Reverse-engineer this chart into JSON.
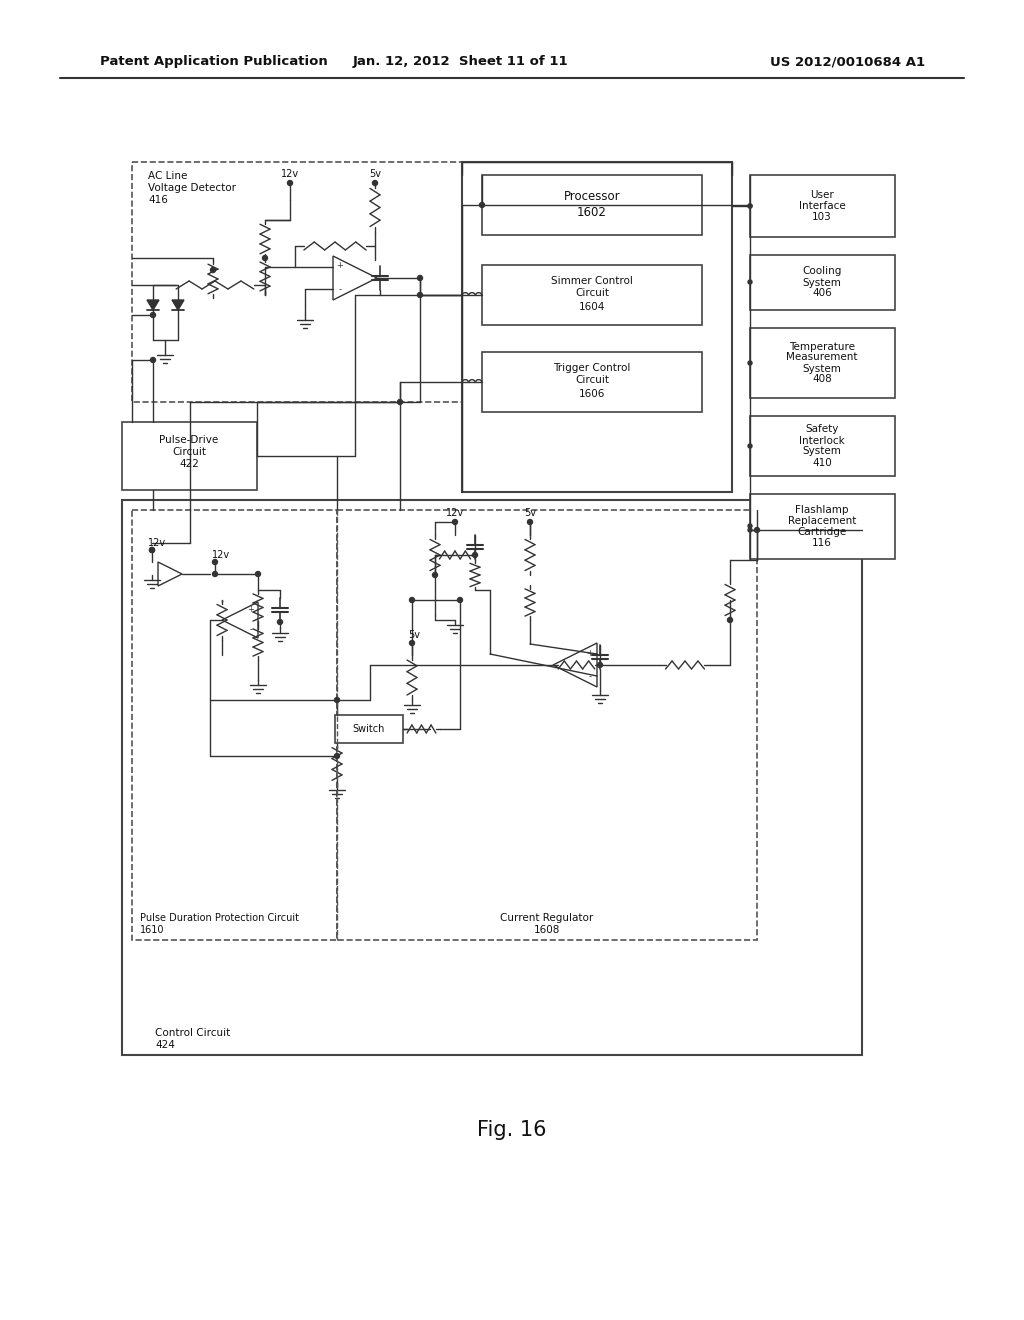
{
  "bg_color": "#ffffff",
  "line_color": "#333333",
  "dashed_color": "#555555",
  "text_color": "#111111",
  "header_left": "Patent Application Publication",
  "header_center": "Jan. 12, 2012  Sheet 11 of 11",
  "header_right": "US 2012/0010684 A1",
  "fig_title": "Fig. 16"
}
